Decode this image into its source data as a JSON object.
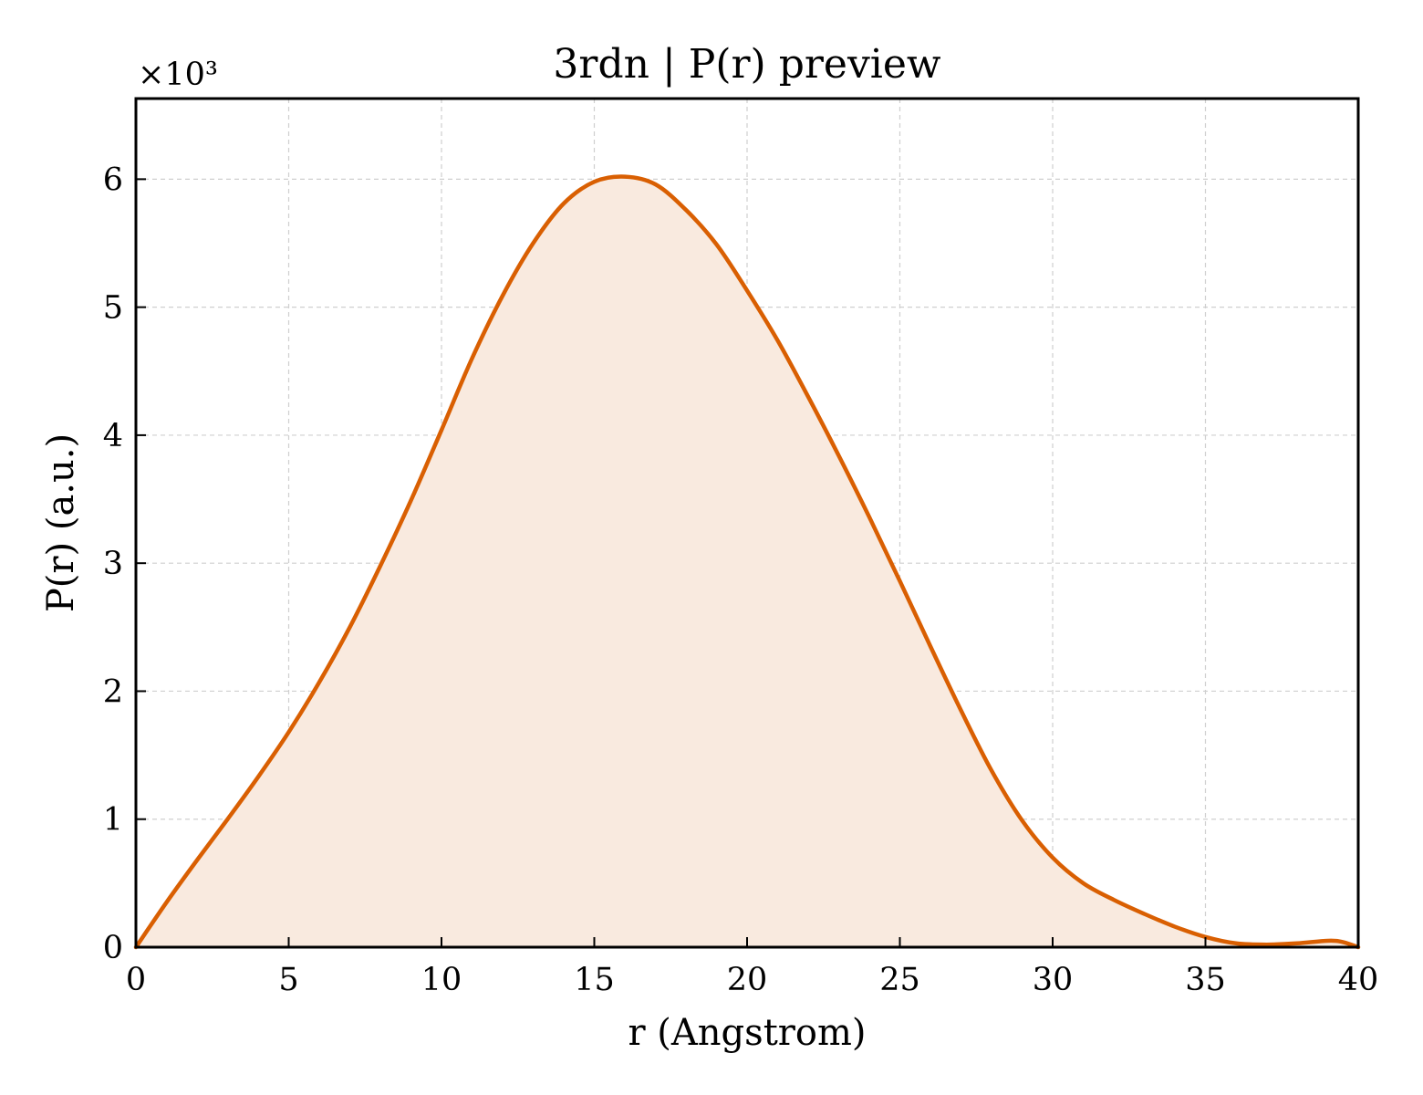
{
  "chart_data": {
    "type": "area",
    "title": "3rdn | P(r) preview",
    "xlabel": "r (Angstrom)",
    "ylabel": "P(r) (a.u.)",
    "y_multiplier_label": "×10³",
    "xlim": [
      0,
      40
    ],
    "ylim": [
      0,
      6.63
    ],
    "xticks": [
      0,
      5,
      10,
      15,
      20,
      25,
      30,
      35,
      40
    ],
    "xtick_labels": [
      "0",
      "5",
      "10",
      "15",
      "20",
      "25",
      "30",
      "35",
      "40"
    ],
    "yticks": [
      0,
      1,
      2,
      3,
      4,
      5,
      6
    ],
    "ytick_labels": [
      "0",
      "1",
      "2",
      "3",
      "4",
      "5",
      "6"
    ],
    "grid": true,
    "line_color": "#d95f02",
    "fill_color": "#f9eadf",
    "series": [
      {
        "x": [
          0,
          1,
          2,
          3,
          4,
          5,
          6,
          7,
          8,
          9,
          10,
          11,
          12,
          13,
          14,
          15,
          16,
          17,
          18,
          19,
          20,
          21,
          22,
          23,
          24,
          25,
          26,
          27,
          28,
          29,
          30,
          31,
          32,
          33,
          34,
          35,
          36,
          37,
          38,
          39,
          39.5,
          40
        ],
        "y": [
          0,
          0.35,
          0.68,
          1.0,
          1.33,
          1.68,
          2.07,
          2.5,
          2.98,
          3.49,
          4.04,
          4.6,
          5.09,
          5.5,
          5.81,
          5.98,
          6.02,
          5.96,
          5.76,
          5.49,
          5.13,
          4.74,
          4.3,
          3.84,
          3.36,
          2.86,
          2.35,
          1.85,
          1.38,
          0.99,
          0.7,
          0.5,
          0.37,
          0.26,
          0.16,
          0.08,
          0.03,
          0.02,
          0.03,
          0.05,
          0.04,
          0.0
        ]
      }
    ]
  }
}
